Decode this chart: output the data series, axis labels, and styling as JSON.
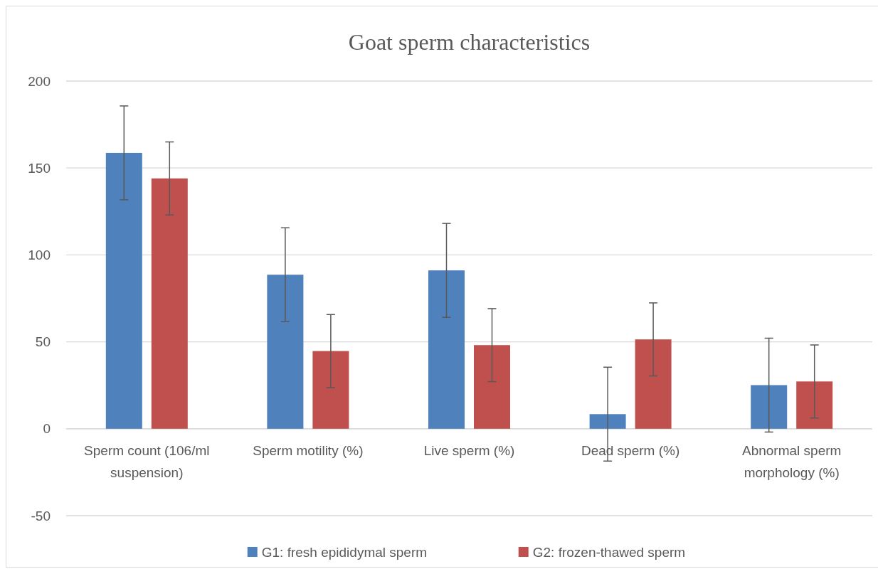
{
  "chart_data": {
    "type": "bar",
    "title": "Goat sperm characteristics",
    "categories": [
      "Sperm count (106/ml suspension)",
      "Sperm motility (%)",
      "Live sperm (%)",
      "Dead sperm (%)",
      "Abnormal sperm morphology (%)"
    ],
    "series": [
      {
        "name": "G1: fresh epididymal sperm",
        "color": "#4f81bd",
        "values": [
          158.7,
          88.6,
          91.1,
          8.4,
          25.1
        ],
        "errors": [
          27,
          27,
          27,
          27,
          27
        ]
      },
      {
        "name": "G2: frozen-thawed sperm",
        "color": "#c0504d",
        "values": [
          144,
          44.7,
          48.1,
          51.4,
          27.2
        ],
        "errors": [
          21,
          21,
          21,
          21,
          21
        ]
      }
    ],
    "ylim": [
      -50,
      200
    ],
    "yticks": [
      -50,
      0,
      50,
      100,
      150,
      200
    ],
    "grid": "y",
    "legend": "bottom"
  }
}
